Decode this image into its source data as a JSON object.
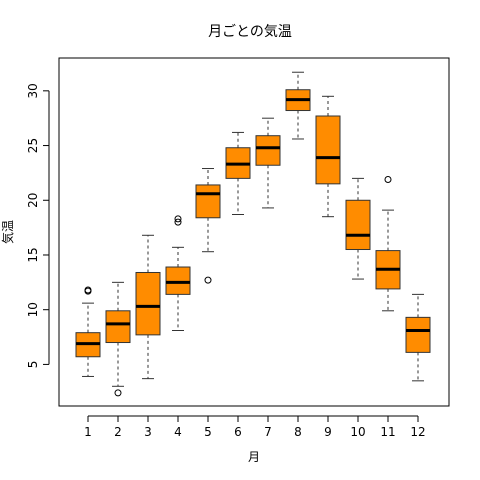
{
  "chart_data": {
    "type": "boxplot",
    "title": "月ごとの気温",
    "xlabel": "月",
    "ylabel": "気温",
    "categories": [
      "1",
      "2",
      "3",
      "4",
      "5",
      "6",
      "7",
      "8",
      "9",
      "10",
      "11",
      "12"
    ],
    "ylim": [
      1.2,
      33.0
    ],
    "yticks": [
      5,
      10,
      15,
      20,
      25,
      30
    ],
    "grid": false,
    "box_fill": "#ff8c00",
    "box_stroke": "#333333",
    "boxes": [
      {
        "category": "1",
        "whisker_low": 3.9,
        "q1": 5.7,
        "median": 6.9,
        "q3": 7.9,
        "whisker_high": 10.6,
        "outliers": [
          11.7,
          11.8
        ]
      },
      {
        "category": "2",
        "whisker_low": 3.0,
        "q1": 7.0,
        "median": 8.7,
        "q3": 9.9,
        "whisker_high": 12.5,
        "outliers": [
          2.4
        ]
      },
      {
        "category": "3",
        "whisker_low": 3.7,
        "q1": 7.7,
        "median": 10.3,
        "q3": 13.4,
        "whisker_high": 16.8,
        "outliers": []
      },
      {
        "category": "4",
        "whisker_low": 8.1,
        "q1": 11.4,
        "median": 12.5,
        "q3": 13.9,
        "whisker_high": 15.7,
        "outliers": [
          18.0,
          18.3
        ]
      },
      {
        "category": "5",
        "whisker_low": 15.3,
        "q1": 18.4,
        "median": 20.6,
        "q3": 21.4,
        "whisker_high": 22.9,
        "outliers": [
          12.7
        ]
      },
      {
        "category": "6",
        "whisker_low": 18.7,
        "q1": 22.0,
        "median": 23.3,
        "q3": 24.8,
        "whisker_high": 26.2,
        "outliers": []
      },
      {
        "category": "7",
        "whisker_low": 19.3,
        "q1": 23.2,
        "median": 24.8,
        "q3": 25.9,
        "whisker_high": 27.5,
        "outliers": []
      },
      {
        "category": "8",
        "whisker_low": 25.6,
        "q1": 28.2,
        "median": 29.2,
        "q3": 30.1,
        "whisker_high": 31.7,
        "outliers": []
      },
      {
        "category": "9",
        "whisker_low": 18.5,
        "q1": 21.5,
        "median": 23.9,
        "q3": 27.7,
        "whisker_high": 29.5,
        "outliers": []
      },
      {
        "category": "10",
        "whisker_low": 12.8,
        "q1": 15.5,
        "median": 16.8,
        "q3": 20.0,
        "whisker_high": 22.0,
        "outliers": []
      },
      {
        "category": "11",
        "whisker_low": 9.9,
        "q1": 11.9,
        "median": 13.7,
        "q3": 15.4,
        "whisker_high": 19.1,
        "outliers": [
          21.9
        ]
      },
      {
        "category": "12",
        "whisker_low": 3.5,
        "q1": 6.1,
        "median": 8.1,
        "q3": 9.3,
        "whisker_high": 11.4,
        "outliers": []
      }
    ]
  }
}
